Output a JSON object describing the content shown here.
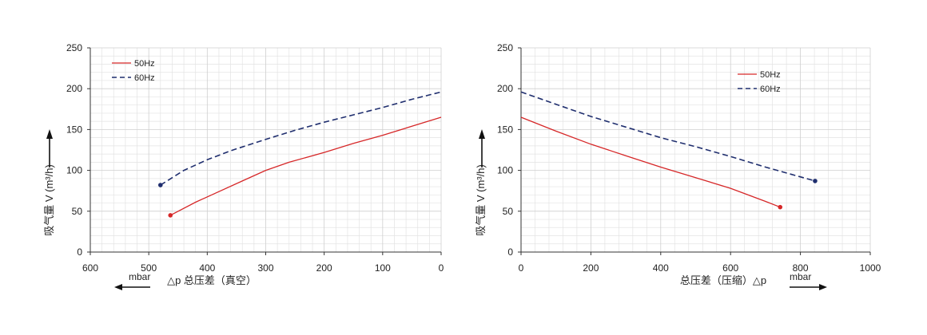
{
  "chart_data": [
    {
      "type": "line",
      "xlabel": "△p 总压差（真空）",
      "ylabel": "吸气量 V (m³/h)",
      "unit": "mbar",
      "xlim": [
        600,
        0
      ],
      "ylim": [
        0,
        250
      ],
      "x_ticks": [
        600,
        500,
        400,
        300,
        200,
        100,
        0
      ],
      "y_ticks": [
        0,
        50,
        100,
        150,
        200,
        250
      ],
      "grid": true,
      "legend": "top-left",
      "series": [
        {
          "name": "50Hz",
          "style": "solid",
          "color": "#d62728",
          "x": [
            463,
            420,
            380,
            340,
            300,
            260,
            200,
            150,
            100,
            50,
            0
          ],
          "y": [
            45,
            61,
            74,
            87,
            100,
            110,
            122,
            133,
            143,
            154,
            165
          ]
        },
        {
          "name": "60Hz",
          "style": "dashed",
          "color": "#1f2e6e",
          "x": [
            480,
            440,
            400,
            360,
            300,
            250,
            200,
            150,
            100,
            50,
            0
          ],
          "y": [
            82,
            100,
            113,
            124,
            138,
            149,
            159,
            168,
            177,
            187,
            196
          ]
        }
      ]
    },
    {
      "type": "line",
      "xlabel": "总压差（压缩）△p",
      "ylabel": "吸气量 V (m³/h)",
      "unit": "mbar",
      "xlim": [
        0,
        1000
      ],
      "ylim": [
        0,
        250
      ],
      "x_ticks": [
        0,
        200,
        400,
        600,
        800,
        1000
      ],
      "y_ticks": [
        0,
        50,
        100,
        150,
        200,
        250
      ],
      "grid": true,
      "legend": "top-right",
      "series": [
        {
          "name": "50Hz",
          "style": "solid",
          "color": "#d62728",
          "x": [
            0,
            100,
            200,
            300,
            400,
            500,
            600,
            700,
            742
          ],
          "y": [
            165,
            148,
            132,
            118,
            104,
            91,
            78,
            62,
            55
          ]
        },
        {
          "name": "60Hz",
          "style": "dashed",
          "color": "#1f2e6e",
          "x": [
            0,
            100,
            200,
            300,
            400,
            500,
            600,
            700,
            842
          ],
          "y": [
            196,
            181,
            166,
            153,
            140,
            129,
            117,
            104,
            87
          ]
        }
      ]
    }
  ]
}
